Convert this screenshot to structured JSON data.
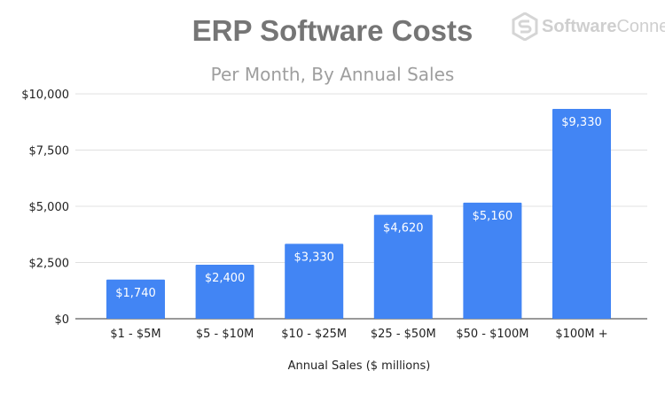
{
  "logo_text": {
    "bold": "Software",
    "regular": "Connect"
  },
  "chart_data": {
    "type": "bar",
    "title": "ERP Software Costs",
    "subtitle": "Per Month, By Annual Sales",
    "xlabel": "Annual Sales ($ millions)",
    "ylabel": "",
    "categories": [
      "$1 - $5M",
      "$5 - $10M",
      "$10 - $25M",
      "$25 - $50M",
      "$50 - $100M",
      "$100M +"
    ],
    "values": [
      1740,
      2400,
      3330,
      4620,
      5160,
      9330
    ],
    "data_labels": [
      "$1,740",
      "$2,400",
      "$3,330",
      "$4,620",
      "$5,160",
      "$9,330"
    ],
    "ylim": [
      0,
      10000
    ],
    "yticks": [
      0,
      2500,
      5000,
      7500,
      10000
    ],
    "ytick_labels": [
      "$0",
      "$2,500",
      "$5,000",
      "$7,500",
      "$10,000"
    ],
    "grid": true,
    "legend": "none",
    "bar_color": "#4285f4"
  }
}
